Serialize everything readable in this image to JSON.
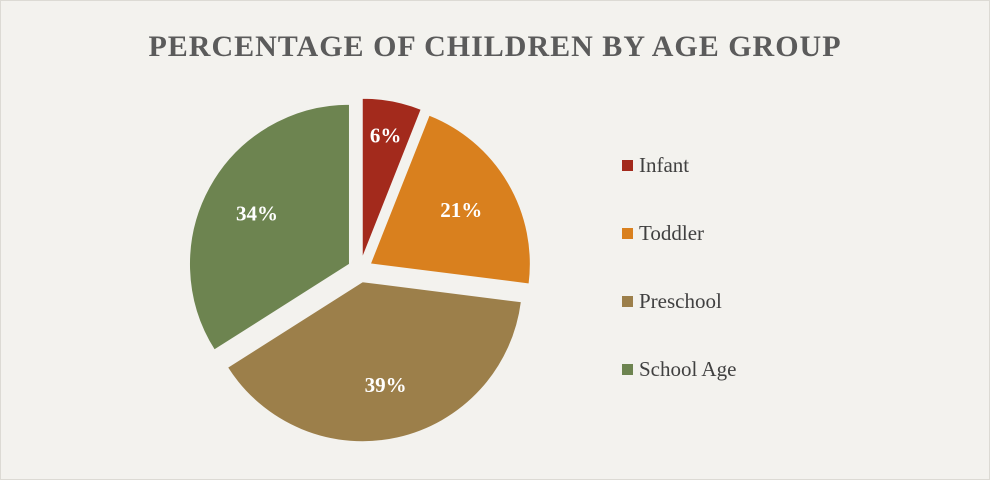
{
  "chart_data": {
    "type": "pie",
    "title": "PERCENTAGE  OF CHILDREN  BY AGE  GROUP",
    "legend_position": "right",
    "exploded": true,
    "categories": [
      "Infant",
      "Toddler",
      "Preschool",
      "School Age"
    ],
    "values": [
      6,
      21,
      39,
      34
    ],
    "data_labels": [
      "6%",
      "21%",
      "39%",
      "34%"
    ],
    "colors": [
      "#a32a1c",
      "#d9801e",
      "#9c7f4a",
      "#6d8450"
    ]
  }
}
